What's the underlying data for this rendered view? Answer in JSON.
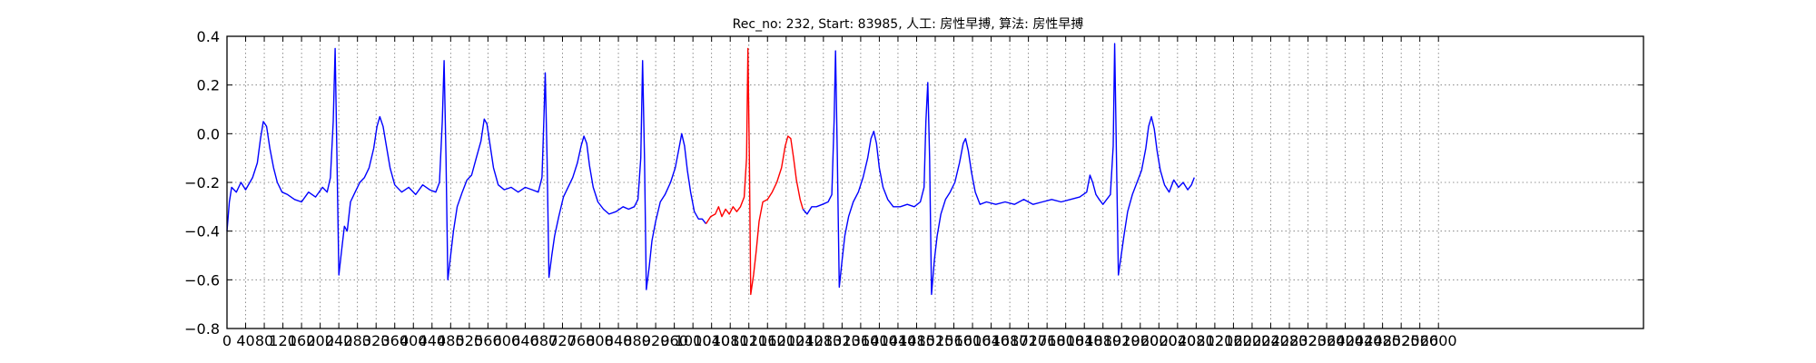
{
  "chart_data": {
    "type": "line",
    "title": "Rec_no: 232, Start: 83985, 人工: 房性早搏, 算法: 房性早搏",
    "xlabel": "",
    "ylabel": "",
    "xlim": [
      0,
      3040
    ],
    "ylim": [
      -0.8,
      0.4
    ],
    "yticks": [
      -0.8,
      -0.6,
      -0.4,
      -0.2,
      0.0,
      0.2,
      0.4
    ],
    "ytick_labels": [
      "−0.8",
      "−0.6",
      "−0.4",
      "−0.2",
      "0.0",
      "0.2",
      "0.4"
    ],
    "xticks": [
      0,
      40,
      80,
      120,
      160,
      200,
      240,
      280,
      320,
      360,
      400,
      440,
      480,
      520,
      560,
      600,
      640,
      680,
      720,
      760,
      800,
      840,
      880,
      920,
      960,
      1000,
      1040,
      1080,
      1120,
      1160,
      1200,
      1240,
      1280,
      1320,
      1360,
      1400,
      1440,
      1480,
      1520,
      1560,
      1600,
      1640,
      1680,
      1720,
      1760,
      1800,
      1840,
      1880,
      1920,
      1960,
      2000,
      2040,
      2080,
      2120,
      2160,
      2200,
      2240,
      2280,
      2320,
      2360,
      2400,
      2440,
      2480,
      2520,
      2560,
      2600
    ],
    "grid": true,
    "series": [
      {
        "color": "#0000ff",
        "points": [
          [
            0,
            -0.4
          ],
          [
            5,
            -0.28
          ],
          [
            10,
            -0.22
          ],
          [
            20,
            -0.24
          ],
          [
            30,
            -0.2
          ],
          [
            40,
            -0.23
          ],
          [
            55,
            -0.18
          ],
          [
            65,
            -0.12
          ],
          [
            72,
            -0.02
          ],
          [
            78,
            0.05
          ],
          [
            85,
            0.03
          ],
          [
            92,
            -0.06
          ],
          [
            100,
            -0.14
          ],
          [
            108,
            -0.2
          ],
          [
            118,
            -0.24
          ],
          [
            130,
            -0.25
          ],
          [
            145,
            -0.27
          ],
          [
            160,
            -0.28
          ],
          [
            175,
            -0.24
          ],
          [
            190,
            -0.26
          ],
          [
            205,
            -0.22
          ],
          [
            215,
            -0.24
          ],
          [
            222,
            -0.18
          ],
          [
            228,
            0.05
          ],
          [
            232,
            0.35
          ],
          [
            236,
            -0.1
          ],
          [
            240,
            -0.58
          ],
          [
            246,
            -0.48
          ],
          [
            252,
            -0.38
          ],
          [
            258,
            -0.4
          ],
          [
            265,
            -0.28
          ],
          [
            275,
            -0.24
          ],
          [
            285,
            -0.2
          ],
          [
            295,
            -0.18
          ],
          [
            305,
            -0.14
          ],
          [
            315,
            -0.06
          ],
          [
            322,
            0.03
          ],
          [
            328,
            0.07
          ],
          [
            335,
            0.03
          ],
          [
            342,
            -0.05
          ],
          [
            350,
            -0.14
          ],
          [
            360,
            -0.21
          ],
          [
            375,
            -0.24
          ],
          [
            390,
            -0.22
          ],
          [
            405,
            -0.25
          ],
          [
            420,
            -0.21
          ],
          [
            435,
            -0.23
          ],
          [
            448,
            -0.24
          ],
          [
            456,
            -0.2
          ],
          [
            462,
            0.05
          ],
          [
            466,
            0.3
          ],
          [
            470,
            -0.1
          ],
          [
            474,
            -0.6
          ],
          [
            480,
            -0.5
          ],
          [
            486,
            -0.4
          ],
          [
            494,
            -0.3
          ],
          [
            505,
            -0.24
          ],
          [
            515,
            -0.19
          ],
          [
            525,
            -0.17
          ],
          [
            535,
            -0.1
          ],
          [
            545,
            -0.03
          ],
          [
            552,
            0.06
          ],
          [
            558,
            0.04
          ],
          [
            565,
            -0.05
          ],
          [
            572,
            -0.14
          ],
          [
            582,
            -0.21
          ],
          [
            595,
            -0.23
          ],
          [
            610,
            -0.22
          ],
          [
            625,
            -0.24
          ],
          [
            640,
            -0.22
          ],
          [
            655,
            -0.23
          ],
          [
            668,
            -0.24
          ],
          [
            676,
            -0.18
          ],
          [
            680,
            0.05
          ],
          [
            683,
            0.25
          ],
          [
            687,
            -0.1
          ],
          [
            691,
            -0.59
          ],
          [
            697,
            -0.5
          ],
          [
            703,
            -0.42
          ],
          [
            712,
            -0.34
          ],
          [
            722,
            -0.26
          ],
          [
            732,
            -0.22
          ],
          [
            742,
            -0.18
          ],
          [
            752,
            -0.12
          ],
          [
            760,
            -0.05
          ],
          [
            766,
            -0.01
          ],
          [
            772,
            -0.04
          ],
          [
            778,
            -0.13
          ],
          [
            786,
            -0.22
          ],
          [
            796,
            -0.28
          ],
          [
            808,
            -0.31
          ],
          [
            820,
            -0.33
          ],
          [
            835,
            -0.32
          ],
          [
            850,
            -0.3
          ],
          [
            862,
            -0.31
          ],
          [
            874,
            -0.3
          ],
          [
            882,
            -0.27
          ],
          [
            888,
            -0.1
          ],
          [
            892,
            0.3
          ],
          [
            896,
            -0.1
          ],
          [
            900,
            -0.64
          ],
          [
            906,
            -0.55
          ],
          [
            912,
            -0.44
          ],
          [
            920,
            -0.36
          ],
          [
            930,
            -0.28
          ],
          [
            940,
            -0.25
          ],
          [
            952,
            -0.2
          ],
          [
            962,
            -0.14
          ],
          [
            970,
            -0.06
          ],
          [
            976,
            0.0
          ],
          [
            982,
            -0.05
          ],
          [
            988,
            -0.15
          ],
          [
            995,
            -0.24
          ],
          [
            1003,
            -0.32
          ],
          [
            1012,
            -0.35
          ],
          [
            1020,
            -0.35
          ],
          [
            1028,
            -0.37
          ]
        ]
      },
      {
        "color": "#ff0000",
        "points": [
          [
            1028,
            -0.37
          ],
          [
            1038,
            -0.34
          ],
          [
            1048,
            -0.33
          ],
          [
            1055,
            -0.3
          ],
          [
            1062,
            -0.34
          ],
          [
            1070,
            -0.31
          ],
          [
            1078,
            -0.33
          ],
          [
            1086,
            -0.3
          ],
          [
            1094,
            -0.32
          ],
          [
            1102,
            -0.3
          ],
          [
            1110,
            -0.26
          ],
          [
            1115,
            -0.1
          ],
          [
            1118,
            0.35
          ],
          [
            1121,
            -0.1
          ],
          [
            1124,
            -0.66
          ],
          [
            1130,
            -0.58
          ],
          [
            1136,
            -0.48
          ],
          [
            1142,
            -0.36
          ],
          [
            1150,
            -0.28
          ],
          [
            1160,
            -0.27
          ],
          [
            1170,
            -0.24
          ],
          [
            1180,
            -0.2
          ],
          [
            1190,
            -0.14
          ],
          [
            1198,
            -0.05
          ],
          [
            1204,
            -0.01
          ],
          [
            1210,
            -0.02
          ],
          [
            1216,
            -0.1
          ],
          [
            1222,
            -0.19
          ],
          [
            1230,
            -0.27
          ],
          [
            1236,
            -0.31
          ]
        ]
      },
      {
        "color": "#0000ff",
        "points": [
          [
            1236,
            -0.31
          ],
          [
            1245,
            -0.33
          ],
          [
            1255,
            -0.3
          ],
          [
            1265,
            -0.3
          ],
          [
            1278,
            -0.29
          ],
          [
            1290,
            -0.28
          ],
          [
            1298,
            -0.25
          ],
          [
            1303,
            0.05
          ],
          [
            1306,
            0.34
          ],
          [
            1310,
            -0.1
          ],
          [
            1314,
            -0.63
          ],
          [
            1320,
            -0.52
          ],
          [
            1326,
            -0.42
          ],
          [
            1334,
            -0.34
          ],
          [
            1344,
            -0.28
          ],
          [
            1355,
            -0.24
          ],
          [
            1365,
            -0.18
          ],
          [
            1375,
            -0.1
          ],
          [
            1382,
            -0.02
          ],
          [
            1388,
            0.01
          ],
          [
            1394,
            -0.04
          ],
          [
            1400,
            -0.14
          ],
          [
            1408,
            -0.22
          ],
          [
            1418,
            -0.27
          ],
          [
            1430,
            -0.3
          ],
          [
            1445,
            -0.3
          ],
          [
            1460,
            -0.29
          ],
          [
            1475,
            -0.3
          ],
          [
            1488,
            -0.28
          ],
          [
            1496,
            -0.22
          ],
          [
            1500,
            0.05
          ],
          [
            1504,
            0.21
          ],
          [
            1508,
            -0.1
          ],
          [
            1512,
            -0.66
          ],
          [
            1518,
            -0.52
          ],
          [
            1524,
            -0.42
          ],
          [
            1532,
            -0.33
          ],
          [
            1542,
            -0.27
          ],
          [
            1552,
            -0.24
          ],
          [
            1562,
            -0.2
          ],
          [
            1572,
            -0.12
          ],
          [
            1580,
            -0.04
          ],
          [
            1585,
            -0.02
          ],
          [
            1591,
            -0.07
          ],
          [
            1598,
            -0.16
          ],
          [
            1606,
            -0.24
          ],
          [
            1616,
            -0.29
          ],
          [
            1630,
            -0.28
          ],
          [
            1650,
            -0.29
          ],
          [
            1670,
            -0.28
          ],
          [
            1690,
            -0.29
          ],
          [
            1710,
            -0.27
          ],
          [
            1730,
            -0.29
          ],
          [
            1750,
            -0.28
          ],
          [
            1770,
            -0.27
          ],
          [
            1790,
            -0.28
          ],
          [
            1810,
            -0.27
          ],
          [
            1830,
            -0.26
          ],
          [
            1845,
            -0.24
          ],
          [
            1852,
            -0.17
          ],
          [
            1858,
            -0.2
          ],
          [
            1865,
            -0.25
          ],
          [
            1872,
            -0.27
          ],
          [
            1880,
            -0.29
          ],
          [
            1888,
            -0.27
          ],
          [
            1896,
            -0.25
          ],
          [
            1902,
            -0.05
          ],
          [
            1905,
            0.37
          ],
          [
            1909,
            -0.1
          ],
          [
            1913,
            -0.58
          ],
          [
            1919,
            -0.5
          ],
          [
            1925,
            -0.42
          ],
          [
            1933,
            -0.32
          ],
          [
            1943,
            -0.25
          ],
          [
            1953,
            -0.2
          ],
          [
            1963,
            -0.15
          ],
          [
            1972,
            -0.06
          ],
          [
            1978,
            0.03
          ],
          [
            1984,
            0.07
          ],
          [
            1990,
            0.02
          ],
          [
            1996,
            -0.07
          ],
          [
            2003,
            -0.15
          ],
          [
            2012,
            -0.21
          ],
          [
            2022,
            -0.24
          ],
          [
            2032,
            -0.19
          ],
          [
            2042,
            -0.22
          ],
          [
            2052,
            -0.2
          ],
          [
            2062,
            -0.23
          ],
          [
            2070,
            -0.21
          ],
          [
            2076,
            -0.18
          ]
        ]
      }
    ]
  }
}
